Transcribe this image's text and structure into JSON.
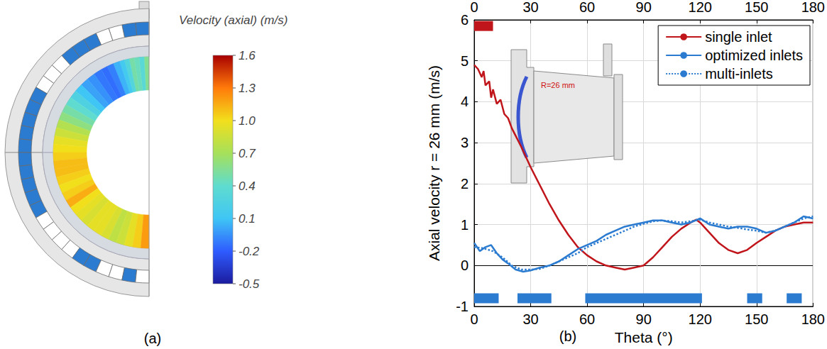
{
  "chart_data": [
    {
      "type": "contour",
      "caption": "(a)",
      "title": "Velocity (axial) (m/s)",
      "colorbar": {
        "range": [
          -0.5,
          1.6
        ],
        "ticks": [
          -0.5,
          -0.2,
          0.1,
          0.4,
          0.7,
          {
            "value": 1.0,
            "label": "1.0"
          },
          1.3,
          1.6
        ]
      },
      "inlet_segments": [
        [
          0,
          13
        ],
        [
          23,
          41
        ],
        [
          59,
          121
        ],
        [
          145,
          153
        ],
        [
          166,
          174
        ]
      ],
      "color": "#2b7bd0"
    },
    {
      "type": "line",
      "caption": "(b)",
      "x_label": "Theta (°)",
      "y_label": "Axial velocity r = 26 mm (m/s)",
      "xlim": [
        0,
        180
      ],
      "xticks": [
        0,
        30,
        60,
        90,
        120,
        150,
        180
      ],
      "ylim": [
        -1,
        6
      ],
      "yticks": [
        -1,
        0,
        1,
        2,
        3,
        4,
        5,
        6
      ],
      "grid": true,
      "legend": "upper right",
      "annotations": [
        "R=26 mm"
      ],
      "series": [
        {
          "name": "single inlet",
          "color": "#c0151b",
          "line_style": "solid",
          "x": [
            0,
            2,
            4,
            5,
            6,
            8,
            9,
            10,
            12,
            14,
            16,
            18,
            20,
            25,
            30,
            35,
            40,
            45,
            50,
            55,
            60,
            65,
            70,
            75,
            80,
            85,
            90,
            95,
            100,
            105,
            110,
            115,
            118,
            120,
            125,
            130,
            135,
            140,
            145,
            150,
            155,
            160,
            165,
            170,
            175,
            180
          ],
          "values": [
            4.9,
            4.8,
            4.6,
            4.75,
            4.4,
            4.5,
            4.1,
            4.3,
            3.95,
            4.05,
            3.7,
            3.6,
            3.35,
            2.9,
            2.4,
            1.95,
            1.5,
            1.1,
            0.75,
            0.45,
            0.25,
            0.1,
            0.0,
            -0.05,
            -0.1,
            -0.05,
            0.0,
            0.2,
            0.45,
            0.7,
            0.9,
            1.05,
            1.12,
            1.05,
            0.8,
            0.55,
            0.38,
            0.3,
            0.38,
            0.55,
            0.7,
            0.85,
            0.95,
            1.0,
            1.05,
            1.05
          ]
        },
        {
          "name": "optimized inlets",
          "color": "#2b7bd0",
          "line_style": "solid",
          "x": [
            0,
            3,
            6,
            9,
            12,
            15,
            18,
            22,
            26,
            30,
            35,
            40,
            45,
            50,
            55,
            60,
            65,
            70,
            75,
            80,
            85,
            90,
            95,
            100,
            105,
            110,
            115,
            120,
            125,
            130,
            135,
            140,
            145,
            150,
            155,
            160,
            165,
            170,
            175,
            180
          ],
          "values": [
            0.55,
            0.35,
            0.45,
            0.5,
            0.3,
            0.15,
            0.05,
            -0.1,
            -0.15,
            -0.12,
            -0.05,
            0.0,
            0.1,
            0.25,
            0.4,
            0.5,
            0.6,
            0.75,
            0.85,
            0.95,
            1.0,
            1.05,
            1.1,
            1.1,
            1.05,
            1.0,
            1.05,
            1.15,
            1.0,
            0.95,
            0.9,
            0.95,
            0.95,
            0.9,
            0.8,
            0.85,
            0.95,
            1.05,
            1.2,
            1.15
          ]
        },
        {
          "name": "multi-inlets",
          "color": "#2b7bd0",
          "line_style": "dotted",
          "x": [
            0,
            5,
            10,
            15,
            20,
            25,
            30,
            35,
            40,
            45,
            50,
            55,
            60,
            65,
            70,
            75,
            80,
            85,
            90,
            95,
            100,
            105,
            110,
            115,
            120,
            125,
            130,
            135,
            140,
            145,
            150,
            155,
            160,
            165,
            170,
            175,
            180
          ],
          "values": [
            0.45,
            0.42,
            0.35,
            0.2,
            0.0,
            -0.1,
            -0.1,
            -0.08,
            0.0,
            0.1,
            0.2,
            0.3,
            0.45,
            0.55,
            0.65,
            0.75,
            0.85,
            0.95,
            1.02,
            1.08,
            1.1,
            1.08,
            1.05,
            1.08,
            1.12,
            1.05,
            1.0,
            0.95,
            0.92,
            0.88,
            0.85,
            0.8,
            0.85,
            0.95,
            1.05,
            1.15,
            1.2
          ]
        }
      ],
      "inlets": [
        {
          "color": "#c0151b",
          "y": 5.85,
          "segments": [
            [
              0,
              10
            ]
          ]
        },
        {
          "color": "#2b7bd0",
          "y": -0.8,
          "segments": [
            [
              0,
              13
            ],
            [
              23,
              41
            ],
            [
              59,
              121
            ],
            [
              145,
              153
            ],
            [
              166,
              174
            ]
          ]
        }
      ]
    }
  ]
}
